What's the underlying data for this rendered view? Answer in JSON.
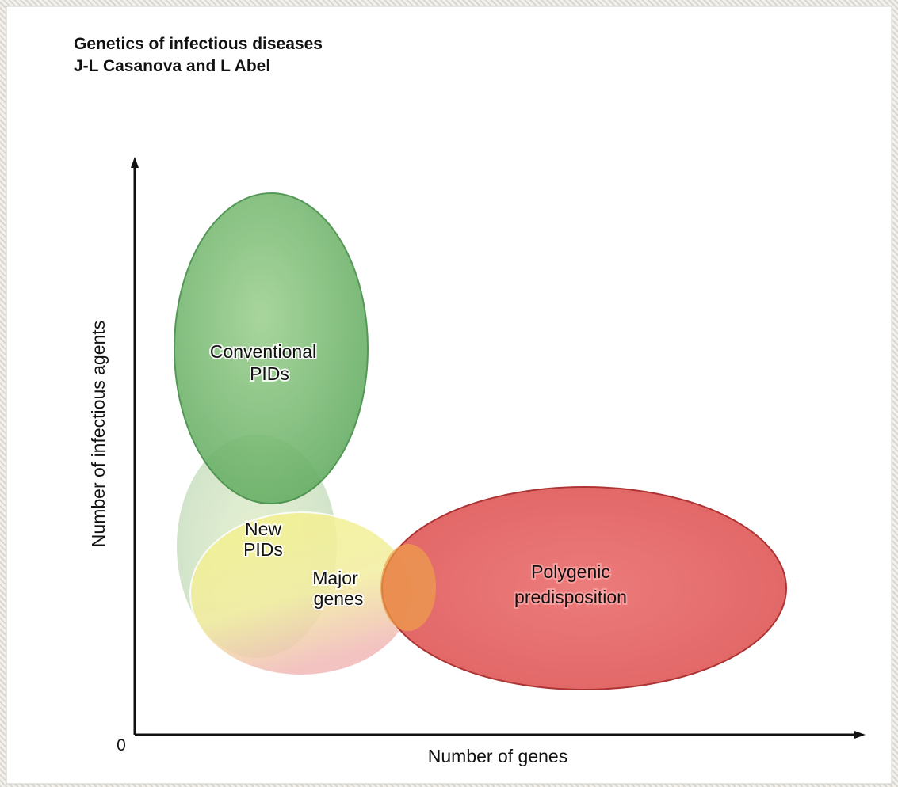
{
  "header": {
    "title": "Genetics of infectious diseases",
    "author": "J-L Casanova and L Abel"
  },
  "axes": {
    "y_label": "Number of infectious agents",
    "x_label": "Number of genes",
    "origin": "0"
  },
  "regions": [
    {
      "label": [
        "Conventional",
        "PIDs"
      ]
    },
    {
      "label": [
        "New",
        "PIDs"
      ]
    },
    {
      "label": [
        "Major",
        "genes"
      ]
    },
    {
      "label": [
        "Polygenic",
        "predisposition"
      ]
    }
  ]
}
